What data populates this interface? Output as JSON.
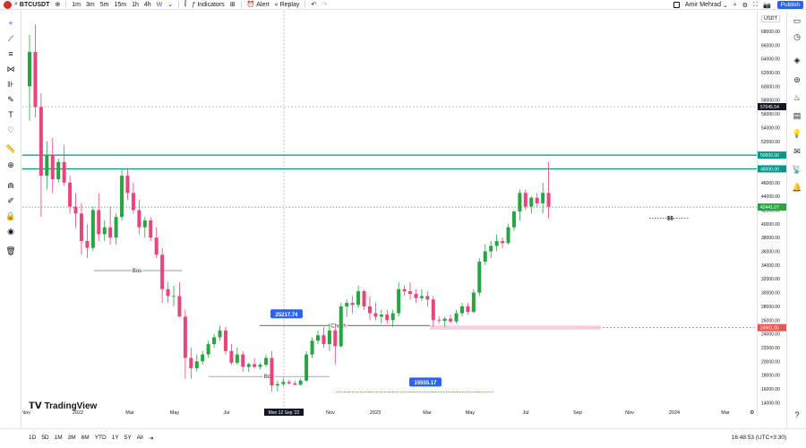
{
  "topbar": {
    "symbol": "BTCUSDT",
    "timeframes": [
      "1m",
      "3m",
      "5m",
      "15m",
      "1h",
      "4h",
      "W"
    ],
    "active_timeframe": "W",
    "indicators_label": "Indicators",
    "alert_label": "Alert",
    "replay_label": "Replay",
    "user_name": "Amir Mehrad",
    "publish_label": "Publish"
  },
  "chart_data": {
    "type": "candlestick",
    "currency": "USDT",
    "y_ticks": [
      "68000.00",
      "66000.00",
      "64000.00",
      "62000.00",
      "60000.00",
      "58000.00",
      "56000.00",
      "54000.00",
      "52000.00",
      "50000.00",
      "48000.00",
      "46000.00",
      "44000.00",
      "42000.00",
      "40000.00",
      "38000.00",
      "36000.00",
      "34000.00",
      "32000.00",
      "30000.00",
      "28000.00",
      "26000.00",
      "24000.00",
      "22000.00",
      "20000.00",
      "18000.00",
      "16000.00",
      "14000.00"
    ],
    "x_ticks": [
      "Nov",
      "2022",
      "Mar",
      "May",
      "Jul",
      "Mon 12 Sep '22",
      "Nov",
      "2023",
      "Mar",
      "May",
      "Jul",
      "Sep",
      "Nov",
      "2024",
      "Mar"
    ],
    "ylim": [
      13000,
      71000
    ],
    "price_labels": {
      "level_high_1": "57045.54",
      "level_high_2": "50000.00",
      "level_high_3": "48000.00",
      "current": "42441.07",
      "support": "24901.00"
    },
    "annotations": {
      "bos_1": "Bos",
      "bos_2": "Bos",
      "choch": "Choch",
      "ss": "$$",
      "label_high": "25217.74",
      "label_low": "15555.17"
    },
    "candles": [
      {
        "o": 60000,
        "h": 67500,
        "l": 55000,
        "c": 65000
      },
      {
        "o": 65000,
        "h": 69000,
        "l": 55500,
        "c": 57000
      },
      {
        "o": 57000,
        "h": 59000,
        "l": 41000,
        "c": 47000
      },
      {
        "o": 47000,
        "h": 52000,
        "l": 45000,
        "c": 50000
      },
      {
        "o": 50000,
        "h": 52500,
        "l": 44500,
        "c": 46500
      },
      {
        "o": 46500,
        "h": 49500,
        "l": 46000,
        "c": 49000
      },
      {
        "o": 49000,
        "h": 51500,
        "l": 45500,
        "c": 46000
      },
      {
        "o": 46000,
        "h": 47000,
        "l": 41500,
        "c": 42500
      },
      {
        "o": 42500,
        "h": 44500,
        "l": 39500,
        "c": 41500
      },
      {
        "o": 41500,
        "h": 43000,
        "l": 35500,
        "c": 37500
      },
      {
        "o": 37500,
        "h": 40000,
        "l": 35000,
        "c": 36500
      },
      {
        "o": 36500,
        "h": 42500,
        "l": 36000,
        "c": 42000
      },
      {
        "o": 42000,
        "h": 44500,
        "l": 37500,
        "c": 38500
      },
      {
        "o": 38500,
        "h": 40500,
        "l": 37500,
        "c": 39500
      },
      {
        "o": 39500,
        "h": 42500,
        "l": 37000,
        "c": 38000
      },
      {
        "o": 38000,
        "h": 41500,
        "l": 37000,
        "c": 41000
      },
      {
        "o": 41000,
        "h": 48000,
        "l": 40500,
        "c": 47000
      },
      {
        "o": 47000,
        "h": 48000,
        "l": 43500,
        "c": 44500
      },
      {
        "o": 44500,
        "h": 46000,
        "l": 41500,
        "c": 42000
      },
      {
        "o": 42000,
        "h": 43500,
        "l": 38500,
        "c": 39500
      },
      {
        "o": 39500,
        "h": 41000,
        "l": 38000,
        "c": 40500
      },
      {
        "o": 40500,
        "h": 41000,
        "l": 37500,
        "c": 38000
      },
      {
        "o": 38000,
        "h": 39500,
        "l": 35000,
        "c": 35500
      },
      {
        "o": 35500,
        "h": 36500,
        "l": 28500,
        "c": 30500
      },
      {
        "o": 30500,
        "h": 31500,
        "l": 28500,
        "c": 29500
      },
      {
        "o": 29500,
        "h": 31000,
        "l": 28000,
        "c": 29500
      },
      {
        "o": 29500,
        "h": 31500,
        "l": 26500,
        "c": 26500
      },
      {
        "o": 26500,
        "h": 27500,
        "l": 17500,
        "c": 20500
      },
      {
        "o": 20500,
        "h": 22000,
        "l": 17500,
        "c": 19000
      },
      {
        "o": 19000,
        "h": 21000,
        "l": 18500,
        "c": 20000
      },
      {
        "o": 20000,
        "h": 21500,
        "l": 19500,
        "c": 21000
      },
      {
        "o": 21000,
        "h": 23000,
        "l": 20500,
        "c": 22500
      },
      {
        "o": 22500,
        "h": 24000,
        "l": 22000,
        "c": 23500
      },
      {
        "o": 23500,
        "h": 25217,
        "l": 23000,
        "c": 24500
      },
      {
        "o": 24500,
        "h": 25000,
        "l": 21000,
        "c": 21500
      },
      {
        "o": 21500,
        "h": 22500,
        "l": 19500,
        "c": 19800
      },
      {
        "o": 19800,
        "h": 22000,
        "l": 19500,
        "c": 21000
      },
      {
        "o": 21000,
        "h": 21500,
        "l": 18500,
        "c": 19200
      },
      {
        "o": 19200,
        "h": 19800,
        "l": 18500,
        "c": 19600
      },
      {
        "o": 19600,
        "h": 20500,
        "l": 19000,
        "c": 19200
      },
      {
        "o": 19200,
        "h": 19800,
        "l": 18800,
        "c": 19500
      },
      {
        "o": 19500,
        "h": 21000,
        "l": 19200,
        "c": 20500
      },
      {
        "o": 20500,
        "h": 21500,
        "l": 15555,
        "c": 16500
      },
      {
        "o": 16500,
        "h": 17200,
        "l": 15600,
        "c": 16700
      },
      {
        "o": 16700,
        "h": 17500,
        "l": 16400,
        "c": 17000
      },
      {
        "o": 17000,
        "h": 17300,
        "l": 16600,
        "c": 16800
      },
      {
        "o": 16800,
        "h": 17200,
        "l": 16500,
        "c": 16600
      },
      {
        "o": 16600,
        "h": 17500,
        "l": 16500,
        "c": 17200
      },
      {
        "o": 17200,
        "h": 21500,
        "l": 17000,
        "c": 21000
      },
      {
        "o": 21000,
        "h": 23500,
        "l": 20500,
        "c": 23000
      },
      {
        "o": 23000,
        "h": 24500,
        "l": 22500,
        "c": 23800
      },
      {
        "o": 23800,
        "h": 25000,
        "l": 22000,
        "c": 22500
      },
      {
        "o": 22500,
        "h": 25500,
        "l": 21500,
        "c": 24500
      },
      {
        "o": 24500,
        "h": 25000,
        "l": 19600,
        "c": 22200
      },
      {
        "o": 22200,
        "h": 28500,
        "l": 22000,
        "c": 28000
      },
      {
        "o": 28000,
        "h": 29000,
        "l": 26500,
        "c": 28500
      },
      {
        "o": 28500,
        "h": 29500,
        "l": 27000,
        "c": 28200
      },
      {
        "o": 28200,
        "h": 31000,
        "l": 27800,
        "c": 30200
      },
      {
        "o": 30200,
        "h": 30500,
        "l": 27500,
        "c": 28000
      },
      {
        "o": 28000,
        "h": 29500,
        "l": 26000,
        "c": 27000
      },
      {
        "o": 27000,
        "h": 28500,
        "l": 26000,
        "c": 26500
      },
      {
        "o": 26500,
        "h": 27500,
        "l": 25500,
        "c": 26800
      },
      {
        "o": 26800,
        "h": 27500,
        "l": 25500,
        "c": 26000
      },
      {
        "o": 26000,
        "h": 27500,
        "l": 25000,
        "c": 27000
      },
      {
        "o": 27000,
        "h": 31500,
        "l": 26500,
        "c": 30500
      },
      {
        "o": 30500,
        "h": 31000,
        "l": 29500,
        "c": 30200
      },
      {
        "o": 30200,
        "h": 31500,
        "l": 29000,
        "c": 29800
      },
      {
        "o": 29800,
        "h": 30500,
        "l": 28500,
        "c": 29200
      },
      {
        "o": 29200,
        "h": 30500,
        "l": 28800,
        "c": 29500
      },
      {
        "o": 29500,
        "h": 30200,
        "l": 28000,
        "c": 29000
      },
      {
        "o": 29000,
        "h": 29500,
        "l": 25000,
        "c": 26000
      },
      {
        "o": 26000,
        "h": 26500,
        "l": 25500,
        "c": 25900
      },
      {
        "o": 25900,
        "h": 26500,
        "l": 25000,
        "c": 26200
      },
      {
        "o": 26200,
        "h": 26800,
        "l": 25500,
        "c": 25800
      },
      {
        "o": 25800,
        "h": 27500,
        "l": 25500,
        "c": 27000
      },
      {
        "o": 27000,
        "h": 28500,
        "l": 26500,
        "c": 28000
      },
      {
        "o": 28000,
        "h": 28500,
        "l": 26800,
        "c": 27200
      },
      {
        "o": 27200,
        "h": 30500,
        "l": 27000,
        "c": 30000
      },
      {
        "o": 30000,
        "h": 35000,
        "l": 29500,
        "c": 34500
      },
      {
        "o": 34500,
        "h": 37000,
        "l": 34000,
        "c": 36000
      },
      {
        "o": 36000,
        "h": 37500,
        "l": 35000,
        "c": 36800
      },
      {
        "o": 36800,
        "h": 38500,
        "l": 36000,
        "c": 37500
      },
      {
        "o": 37500,
        "h": 38000,
        "l": 36500,
        "c": 37200
      },
      {
        "o": 37200,
        "h": 40000,
        "l": 37000,
        "c": 39500
      },
      {
        "o": 39500,
        "h": 42000,
        "l": 39000,
        "c": 41800
      },
      {
        "o": 41800,
        "h": 45000,
        "l": 40500,
        "c": 44500
      },
      {
        "o": 44500,
        "h": 45000,
        "l": 42000,
        "c": 42500
      },
      {
        "o": 42500,
        "h": 44000,
        "l": 41500,
        "c": 43800
      },
      {
        "o": 43800,
        "h": 44500,
        "l": 42500,
        "c": 43000
      },
      {
        "o": 43000,
        "h": 46000,
        "l": 41500,
        "c": 44500
      },
      {
        "o": 44500,
        "h": 49000,
        "l": 40800,
        "c": 42500
      }
    ]
  },
  "bottom": {
    "ranges": [
      "1D",
      "5D",
      "1M",
      "3M",
      "6M",
      "YTD",
      "1Y",
      "5Y",
      "All"
    ],
    "clock": "16:48:53 (UTC+3:30)"
  },
  "logo_text": "TradingView",
  "colors": {
    "up": "#26a541",
    "down": "#e8457a",
    "level": "#009688",
    "support": "#ef5350",
    "label_blue": "#2962ff"
  }
}
